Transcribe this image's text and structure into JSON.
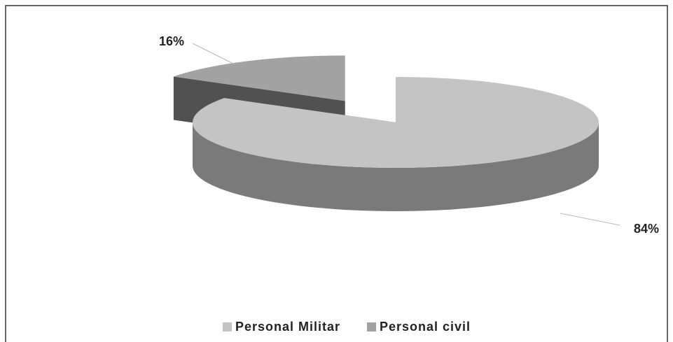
{
  "chart_data": {
    "type": "pie",
    "categories": [
      "Personal Militar",
      "Personal civil"
    ],
    "values": [
      84,
      16
    ],
    "value_labels": [
      "84%",
      "16%"
    ],
    "colors": [
      "#c4c4c4",
      "#a2a2a2"
    ]
  }
}
